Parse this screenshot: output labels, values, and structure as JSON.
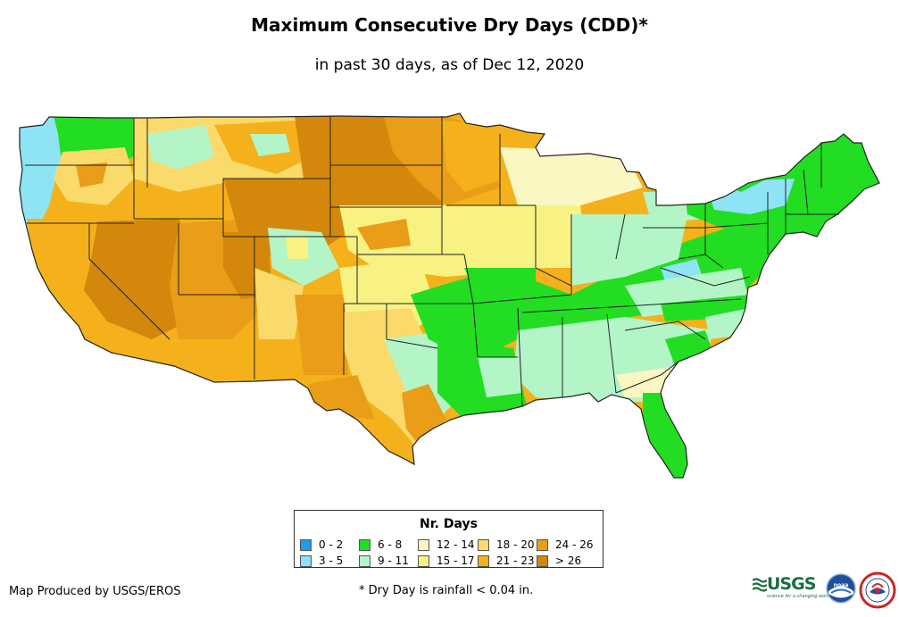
{
  "title": "Maximum Consecutive Dry Days (CDD)*",
  "subtitle": "in past 30 days, as of Dec 12, 2020",
  "legend": {
    "title": "Nr. Days",
    "items": [
      {
        "label": "0 - 2",
        "color": "#1e9bf0"
      },
      {
        "label": "3 - 5",
        "color": "#8ee4f5"
      },
      {
        "label": "6 - 8",
        "color": "#22dd22"
      },
      {
        "label": "9 - 11",
        "color": "#b4f5c8"
      },
      {
        "label": "12 - 14",
        "color": "#fbf7c3"
      },
      {
        "label": "15 - 17",
        "color": "#f7f282"
      },
      {
        "label": "18 - 20",
        "color": "#f9da6b"
      },
      {
        "label": "21 - 23",
        "color": "#f4b11b"
      },
      {
        "label": "24 - 26",
        "color": "#e99d18"
      },
      {
        "label": "> 26",
        "color": "#d3880c"
      }
    ]
  },
  "credit": "Map Produced by USGS/EROS",
  "footnote": "* Dry Day is rainfall < 0.04 in.",
  "logos": {
    "usgs_text": "USGS",
    "usgs_tagline": "science for a changing world",
    "noaa_text": "noaa",
    "nws_name": "national weather service"
  },
  "colors": {
    "c0_2": "#1e9bf0",
    "c3_5": "#8ee4f5",
    "c6_8": "#22dd22",
    "c9_11": "#b4f5c8",
    "c12_14": "#fbf7c3",
    "c15_17": "#f7f282",
    "c18_20": "#f9da6b",
    "c21_23": "#f4b11b",
    "c24_26": "#e99d18",
    "c_gt26": "#d3880c",
    "border": "#222222"
  }
}
